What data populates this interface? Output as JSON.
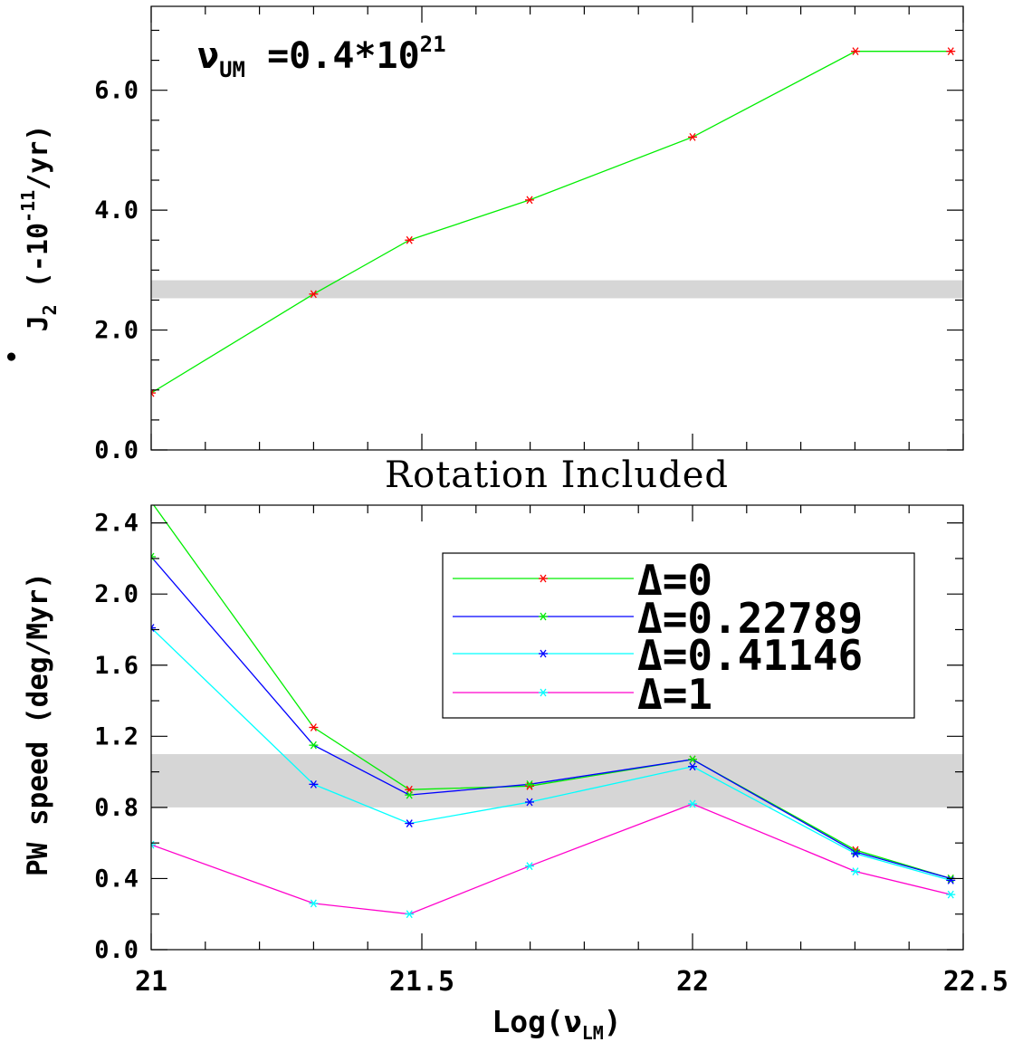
{
  "chart_data": [
    {
      "type": "line",
      "annotation": {
        "main": "ν",
        "sub": "UM",
        "rest": " =0.4*10",
        "sup": "21"
      },
      "ylabel": {
        "dot_sym": "•",
        "sym": "J",
        "sub": "2",
        "units_pre": "(-10",
        "units_sup": "-11",
        "units_post": "/yr)"
      },
      "ylim": [
        0,
        7.4
      ],
      "yticks": [
        "0.0",
        "2.0",
        "4.0",
        "6.0"
      ],
      "band": [
        2.53,
        2.83
      ],
      "x": [
        21,
        21.3,
        21.477,
        21.699,
        22,
        22.301,
        22.477
      ],
      "series": [
        {
          "line_color": "#00ee00",
          "marker_color": "#ff0000",
          "values": [
            0.95,
            2.6,
            3.5,
            4.17,
            5.22,
            6.65,
            6.65
          ]
        }
      ]
    },
    {
      "type": "line",
      "title": "Rotation Included",
      "ylabel": "PW speed (deg/Myr)",
      "xlabel": {
        "pre": "Log(",
        "sym": "ν",
        "sub": "LM",
        "post": ")"
      },
      "xlim": [
        21,
        22.5
      ],
      "xticks": [
        "21",
        "21.5",
        "22",
        "22.5"
      ],
      "ylim": [
        0,
        2.5
      ],
      "yticks": [
        "0.0",
        "0.4",
        "0.8",
        "1.2",
        "1.6",
        "2.0",
        "2.4"
      ],
      "band": [
        0.8,
        1.1
      ],
      "x": [
        21,
        21.3,
        21.477,
        21.699,
        22,
        22.301,
        22.477
      ],
      "series": [
        {
          "name": "Δ=0",
          "line_color": "#00ee00",
          "marker_color": "#ff0000",
          "values": [
            2.52,
            1.25,
            0.9,
            0.92,
            1.07,
            0.56,
            0.4
          ]
        },
        {
          "name": "Δ=0.22789",
          "line_color": "#0000ff",
          "marker_color": "#00ee00",
          "values": [
            2.21,
            1.15,
            0.87,
            0.93,
            1.07,
            0.55,
            0.4
          ]
        },
        {
          "name": "Δ=0.41146",
          "line_color": "#00ffff",
          "marker_color": "#0000ff",
          "values": [
            1.81,
            0.93,
            0.71,
            0.83,
            1.03,
            0.54,
            0.39
          ]
        },
        {
          "name": "Δ=1",
          "line_color": "#ff00cc",
          "marker_color": "#00ffff",
          "values": [
            0.59,
            0.26,
            0.2,
            0.47,
            0.82,
            0.44,
            0.31
          ]
        }
      ],
      "legend": "top-right"
    }
  ]
}
